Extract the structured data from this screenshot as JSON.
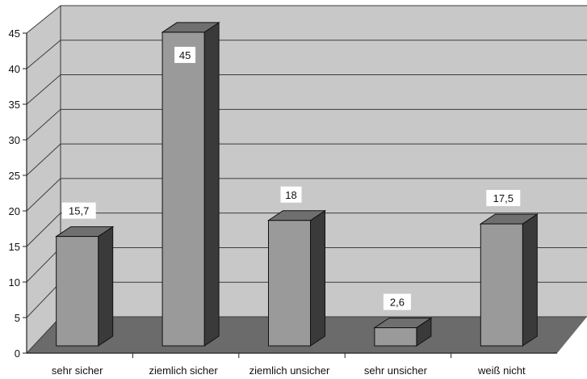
{
  "chart_data": {
    "type": "bar",
    "style": "3d",
    "categories": [
      "sehr sicher",
      "ziemlich sicher",
      "ziemlich unsicher",
      "sehr unsicher",
      "weiß nicht"
    ],
    "values": [
      15.7,
      45,
      18,
      2.6,
      17.5
    ],
    "value_labels": [
      "15,7",
      "45",
      "18",
      "2,6",
      "17,5"
    ],
    "title": "",
    "xlabel": "",
    "ylabel": "",
    "ylim": [
      0,
      45
    ],
    "yticks": [
      0,
      5,
      10,
      15,
      20,
      25,
      30,
      35,
      40,
      45
    ],
    "grid": true,
    "legend": "none",
    "colors": {
      "bar_front": "#9a9a9a",
      "bar_top": "#6f6f6f",
      "bar_side": "#3a3a3a",
      "wall": "#c8c8c8",
      "floor": "#6b6b6b",
      "gridline": "#3c3c3c"
    }
  }
}
